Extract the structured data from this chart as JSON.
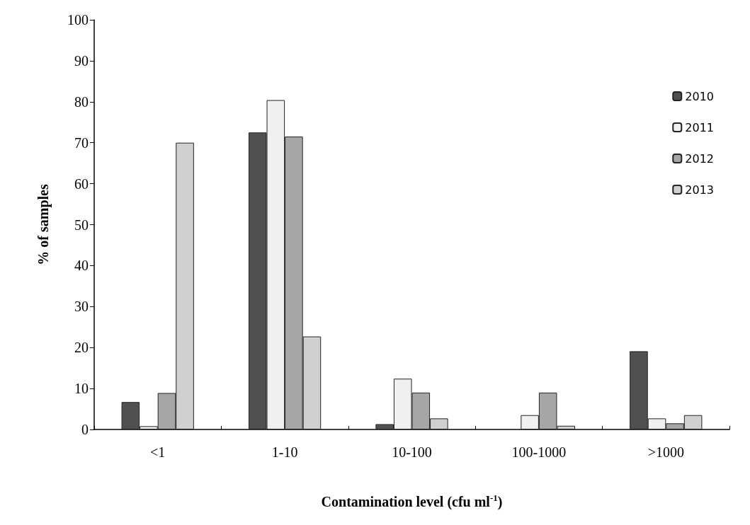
{
  "chart_data": {
    "type": "bar",
    "xlabel": "Contamination level (cfu ml$^{-1}$)",
    "ylabel": "% of samples",
    "categories": [
      "<1",
      "1-10",
      "10-100",
      "100-1000",
      ">1000"
    ],
    "series": [
      {
        "name": "2010",
        "color": "#505050",
        "values": [
          6.7,
          72.5,
          1.3,
          null,
          19.1
        ]
      },
      {
        "name": "2011",
        "color": "#f0f0f0",
        "values": [
          0.8,
          80.4,
          12.4,
          3.5,
          2.7
        ]
      },
      {
        "name": "2012",
        "color": "#a6a6a6",
        "values": [
          8.9,
          71.5,
          9.0,
          9.0,
          1.5
        ]
      },
      {
        "name": "2013",
        "color": "#d0d0d0",
        "values": [
          70,
          22.7,
          2.7,
          0.9,
          3.5
        ]
      }
    ],
    "ylim": [
      0,
      100
    ],
    "yticks": [
      0,
      10,
      20,
      30,
      40,
      50,
      60,
      70,
      80,
      90,
      100
    ],
    "grid": false,
    "legend": "top right"
  }
}
